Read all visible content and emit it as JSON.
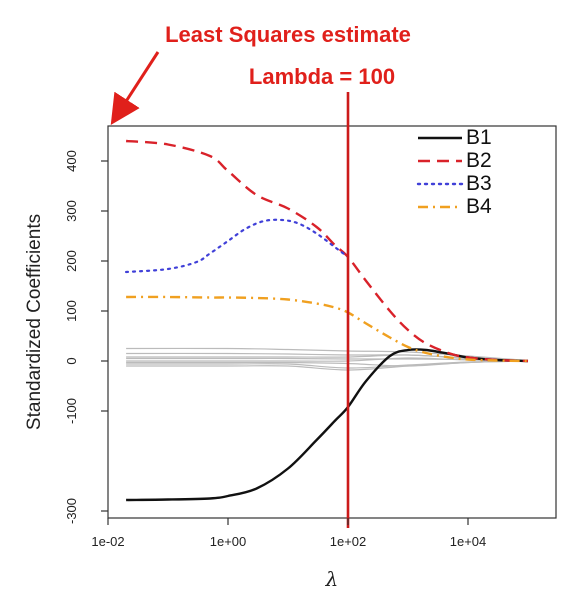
{
  "chart_data": {
    "type": "line",
    "title": "",
    "xlabel": "λ",
    "ylabel": "Standardized Coefficients",
    "xscale": "log10",
    "xlim": [
      0.01,
      200000
    ],
    "ylim": [
      -300,
      440
    ],
    "xticks": [
      {
        "value": 0.01,
        "label": "1e-02"
      },
      {
        "value": 1,
        "label": "1e+00"
      },
      {
        "value": 100,
        "label": "1e+02"
      },
      {
        "value": 10000,
        "label": "1e+04"
      }
    ],
    "yticks": [
      {
        "value": 400,
        "label": "400"
      },
      {
        "value": 300,
        "label": "300"
      },
      {
        "value": 200,
        "label": "200"
      },
      {
        "value": 100,
        "label": "100"
      },
      {
        "value": 0,
        "label": "0"
      },
      {
        "value": -100,
        "label": "-100"
      },
      {
        "value": -300,
        "label": "-300"
      }
    ],
    "legend_position": "top-right",
    "series": [
      {
        "name": "B1",
        "color": "#111111",
        "style": "solid",
        "x": [
          0.02,
          0.1,
          0.5,
          1,
          3,
          10,
          30,
          60,
          100,
          200,
          500,
          1000,
          2000,
          5000,
          10000,
          30000,
          100000
        ],
        "y": [
          -278,
          -277,
          -275,
          -270,
          -255,
          -215,
          -158,
          -120,
          -92,
          -40,
          10,
          22,
          22,
          14,
          7,
          2,
          0
        ]
      },
      {
        "name": "B2",
        "color": "#d9222a",
        "style": "dashed",
        "x": [
          0.02,
          0.1,
          0.5,
          1,
          3,
          10,
          30,
          60,
          100,
          200,
          500,
          1000,
          2000,
          5000,
          10000,
          30000,
          100000
        ],
        "y": [
          440,
          433,
          410,
          380,
          332,
          305,
          268,
          232,
          208,
          160,
          100,
          62,
          35,
          15,
          7,
          2,
          0
        ]
      },
      {
        "name": "B3",
        "color": "#4040d8",
        "style": "dotted",
        "x": [
          0.02,
          0.1,
          0.3,
          0.5,
          1,
          2,
          4,
          8,
          15,
          30,
          60,
          100
        ],
        "y": [
          178,
          184,
          198,
          215,
          240,
          265,
          280,
          282,
          275,
          255,
          228,
          208
        ]
      },
      {
        "name": "B4",
        "color": "#f0a020",
        "style": "dashdot",
        "x": [
          0.02,
          0.1,
          0.5,
          1,
          3,
          10,
          30,
          60,
          100,
          200,
          500,
          1000,
          2000,
          5000,
          10000,
          30000,
          100000
        ],
        "y": [
          128,
          128,
          127,
          127,
          126,
          123,
          115,
          107,
          97,
          75,
          47,
          28,
          16,
          7,
          3,
          1,
          0
        ]
      }
    ],
    "background_series": {
      "color": "#bbbbbb",
      "x": [
        0.02,
        1,
        10,
        100,
        1000,
        10000,
        100000
      ],
      "lines": [
        [
          25,
          25,
          23,
          20,
          18,
          10,
          1
        ],
        [
          15,
          15,
          14,
          12,
          12,
          6,
          1
        ],
        [
          8,
          8,
          8,
          8,
          12,
          5,
          0
        ],
        [
          5,
          5,
          5,
          4,
          4,
          3,
          0
        ],
        [
          0,
          0,
          0,
          0,
          6,
          2,
          0
        ],
        [
          -3,
          -3,
          -3,
          -5,
          -10,
          -3,
          0
        ],
        [
          -6,
          -6,
          -6,
          -14,
          -8,
          -2,
          0
        ],
        [
          -10,
          -10,
          -10,
          -18,
          -10,
          -3,
          0
        ]
      ]
    },
    "reference_line": {
      "x": 100,
      "color": "#cc1a1a"
    },
    "annotations": {
      "least_squares": "Least Squares estimate",
      "lambda_label": "Lambda = 100"
    }
  }
}
